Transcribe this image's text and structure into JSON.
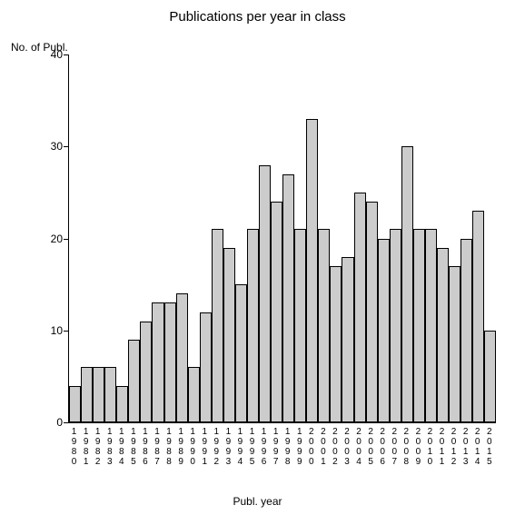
{
  "chart": {
    "type": "bar",
    "title": "Publications per year in class",
    "title_fontsize": 15,
    "y_axis_label": "No. of Publ.",
    "x_axis_label": "Publ. year",
    "label_fontsize": 12,
    "ylim": [
      0,
      40
    ],
    "yticks": [
      0,
      10,
      20,
      30,
      40
    ],
    "categories": [
      "1980",
      "1981",
      "1982",
      "1983",
      "1984",
      "1985",
      "1986",
      "1987",
      "1988",
      "1989",
      "1990",
      "1991",
      "1992",
      "1993",
      "1994",
      "1995",
      "1996",
      "1997",
      "1998",
      "1999",
      "2000",
      "2001",
      "2002",
      "2003",
      "2004",
      "2005",
      "2006",
      "2007",
      "2008",
      "2009",
      "2010",
      "2011",
      "2012",
      "2013",
      "2014",
      "2015"
    ],
    "values": [
      4,
      6,
      6,
      6,
      4,
      9,
      11,
      13,
      13,
      14,
      6,
      12,
      21,
      19,
      15,
      21,
      28,
      24,
      27,
      21,
      33,
      21,
      17,
      18,
      25,
      24,
      20,
      21,
      30,
      21,
      21,
      19,
      17,
      20,
      23,
      10
    ],
    "bar_fill": "#cccccc",
    "bar_border": "#000000",
    "background_color": "#ffffff",
    "text_color": "#000000",
    "tick_fontsize": 12,
    "xlabel_fontsize": 10
  }
}
